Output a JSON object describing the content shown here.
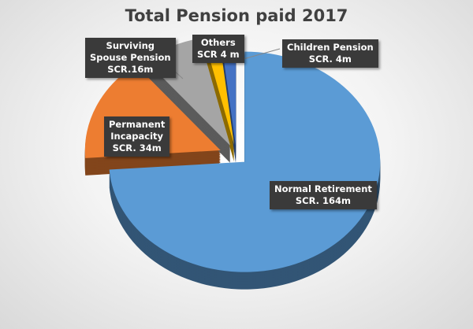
{
  "chart_data": {
    "type": "pie",
    "style": "3d-exploded",
    "title": "Total Pension paid 2017",
    "unit": "SCR million",
    "slices": [
      {
        "name": "Normal Retirement",
        "value": 164,
        "label_lines": [
          "Normal Retirement",
          "SCR. 164m"
        ],
        "color": "#5b9bd5"
      },
      {
        "name": "Permanent Incapacity",
        "value": 34,
        "label_lines": [
          "Permanent",
          "Incapacity",
          "SCR. 34m"
        ],
        "color": "#ed7d31"
      },
      {
        "name": "Surviving Spouse Pension",
        "value": 16,
        "label_lines": [
          "Surviving",
          "Spouse Pension",
          "SCR.16m"
        ],
        "color": "#a5a5a5"
      },
      {
        "name": "Others",
        "value": 4,
        "label_lines": [
          "Others",
          "SCR 4 m"
        ],
        "color": "#ffc000"
      },
      {
        "name": "Children Pension",
        "value": 4,
        "label_lines": [
          "Children Pension",
          "SCR. 4m"
        ],
        "color": "#4472c4"
      }
    ]
  }
}
